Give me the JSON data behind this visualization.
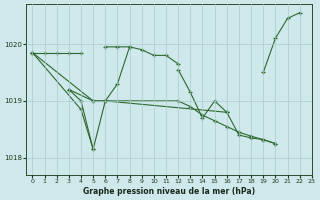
{
  "bg_color": "#cfe8ec",
  "grid_color": "#aacccc",
  "line_color": "#2d6a2d",
  "title": "Graphe pression niveau de la mer (hPa)",
  "xlim": [
    -0.5,
    23
  ],
  "ylim": [
    1017.7,
    1020.7
  ],
  "yticks": [
    1018,
    1019,
    1020
  ],
  "xticks": [
    0,
    1,
    2,
    3,
    4,
    5,
    6,
    7,
    8,
    9,
    10,
    11,
    12,
    13,
    14,
    15,
    16,
    17,
    18,
    19,
    20,
    21,
    22,
    23
  ],
  "lines": [
    {
      "comment": "Line A: flat near 1019.8, x=0..4 then x=6..12",
      "segments": [
        {
          "x": [
            0,
            1,
            2,
            3,
            4
          ],
          "y": [
            1019.85,
            1019.85,
            1019.85,
            1019.85,
            1019.85
          ]
        },
        {
          "x": [
            6,
            7,
            8,
            9,
            10,
            11,
            12
          ],
          "y": [
            1019.95,
            1019.95,
            1019.95,
            1019.9,
            1019.8,
            1019.8,
            1019.65
          ]
        }
      ]
    },
    {
      "segments": [
        {
          "x": [
            3,
            4,
            5,
            6,
            7,
            8
          ],
          "y": [
            1019.2,
            1019.0,
            1018.15,
            1019.0,
            1019.3,
            1019.95
          ]
        },
        {
          "x": [
            12,
            13,
            14,
            15,
            16
          ],
          "y": [
            1019.55,
            1019.15,
            1018.7,
            1019.0,
            1018.8
          ]
        },
        {
          "x": [
            19,
            20,
            21,
            22
          ],
          "y": [
            1019.5,
            1020.1,
            1020.45,
            1020.55
          ]
        }
      ]
    },
    {
      "segments": [
        {
          "x": [
            0,
            4,
            5
          ],
          "y": [
            1019.85,
            1018.85,
            1018.15
          ]
        }
      ]
    },
    {
      "segments": [
        {
          "x": [
            0,
            5,
            6,
            12,
            13,
            14,
            15,
            16,
            17,
            18,
            19,
            20
          ],
          "y": [
            1019.85,
            1019.0,
            1019.0,
            1019.0,
            1018.9,
            1018.75,
            1018.65,
            1018.55,
            1018.45,
            1018.38,
            1018.32,
            1018.25
          ]
        }
      ]
    },
    {
      "comment": "Line E: from x=3 ~1019.2 through x=5-6 ~1019.0, long to x=20 ~1018.2",
      "segments": [
        {
          "x": [
            3,
            5,
            6,
            16,
            17,
            18,
            19,
            20
          ],
          "y": [
            1019.2,
            1019.0,
            1019.0,
            1018.8,
            1018.4,
            1018.35,
            1018.32,
            1018.25
          ]
        }
      ]
    }
  ]
}
